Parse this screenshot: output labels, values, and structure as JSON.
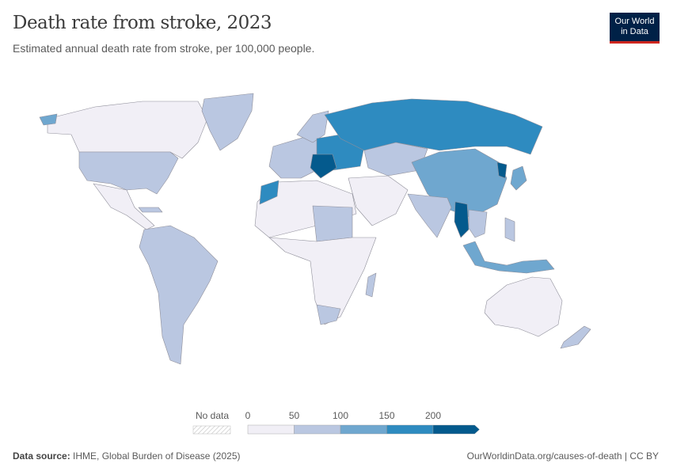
{
  "header": {
    "title": "Death rate from stroke, 2023",
    "subtitle": "Estimated annual death rate from stroke, per 100,000 people.",
    "logo_line1": "Our World",
    "logo_line2": "in Data"
  },
  "legend": {
    "no_data_label": "No data",
    "ticks": [
      "0",
      "50",
      "100",
      "150",
      "200"
    ],
    "bins": [
      {
        "min": 0,
        "max": 50,
        "color": "#f1eff6"
      },
      {
        "min": 50,
        "max": 100,
        "color": "#bac7e1"
      },
      {
        "min": 100,
        "max": 150,
        "color": "#6fa7cf"
      },
      {
        "min": 150,
        "max": 200,
        "color": "#2e8bc0"
      },
      {
        "min": 200,
        "max": null,
        "color": "#045a8d"
      }
    ]
  },
  "footer": {
    "source_label": "Data source:",
    "source_text": "IHME, Global Burden of Disease (2025)",
    "url_text": "OurWorldinData.org/causes-of-death | CC BY"
  }
}
